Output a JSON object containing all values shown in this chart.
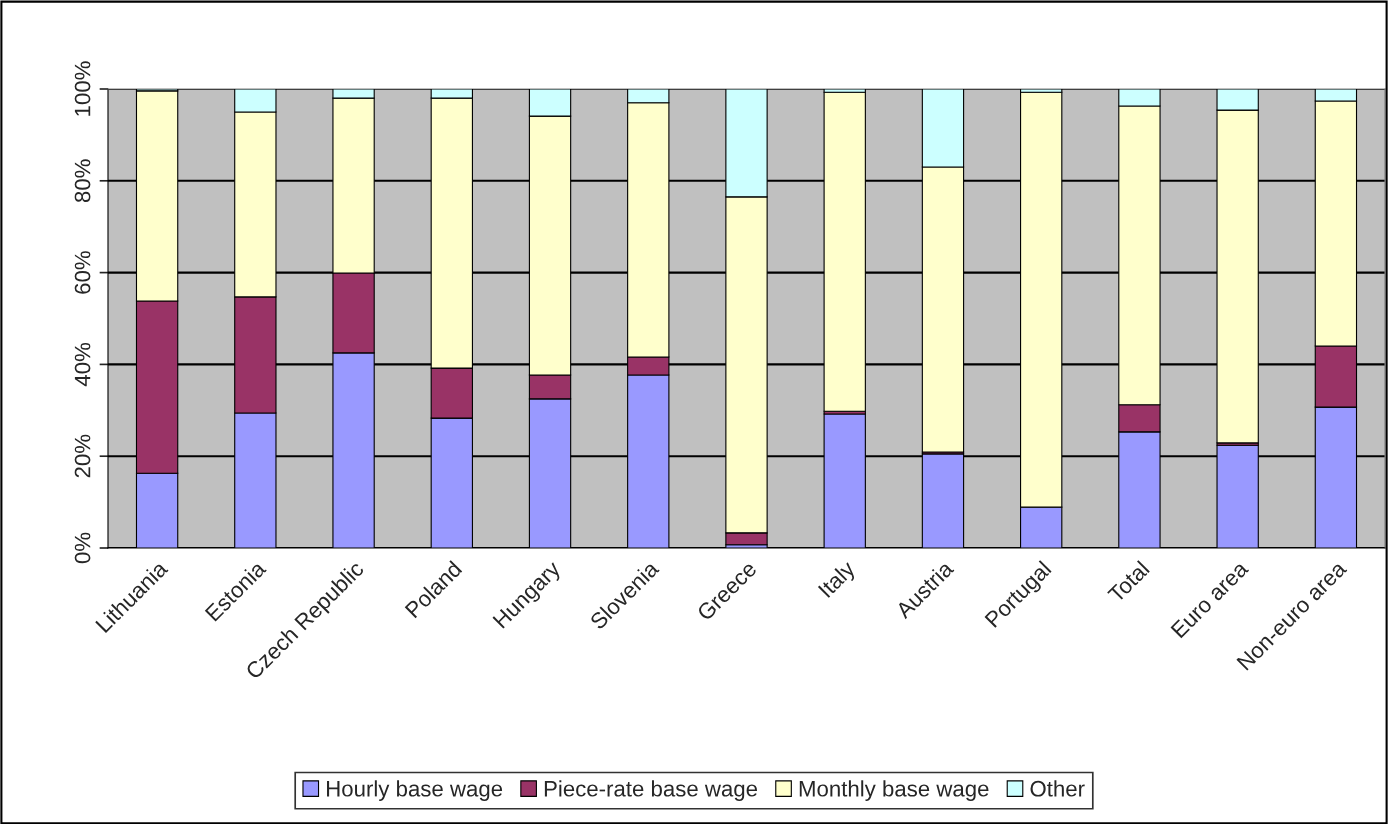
{
  "chart_data": {
    "type": "bar",
    "stacked": true,
    "categories": [
      "Lithuania",
      "Estonia",
      "Czech Republic",
      "Poland",
      "Hungary",
      "Slovenia",
      "Greece",
      "Italy",
      "Austria",
      "Portugal",
      "Total",
      "Euro area",
      "Non-euro area"
    ],
    "series": [
      {
        "name": "Hourly base wage",
        "color": "#9999ff",
        "values": [
          16.3,
          29.4,
          42.5,
          28.3,
          32.5,
          37.7,
          0.7,
          29.2,
          20.5,
          8.9,
          25.3,
          22.4,
          30.7
        ]
      },
      {
        "name": "Piece-rate base wage",
        "color": "#993366",
        "values": [
          37.5,
          25.3,
          17.4,
          10.9,
          5.2,
          3.9,
          2.6,
          0.6,
          0.4,
          null,
          5.9,
          0.5,
          13.3
        ]
      },
      {
        "name": "Monthly base wage",
        "color": "#ffffcc",
        "values": [
          45.8,
          40.3,
          38.1,
          58.8,
          56.4,
          55.4,
          73.2,
          69.5,
          62.1,
          90.4,
          65.1,
          72.5,
          53.4
        ]
      },
      {
        "name": "Other",
        "color": "#ccffff",
        "values": [
          0.4,
          5.0,
          2.0,
          2.0,
          5.9,
          3.0,
          23.5,
          0.7,
          17.0,
          0.7,
          3.7,
          4.6,
          2.6
        ]
      }
    ],
    "ylim": [
      0,
      100
    ],
    "yticks": [
      {
        "value": 0,
        "label": "0%"
      },
      {
        "value": 20,
        "label": "20%"
      },
      {
        "value": 40,
        "label": "40%"
      },
      {
        "value": 60,
        "label": "60%"
      },
      {
        "value": 80,
        "label": "80%"
      },
      {
        "value": 100,
        "label": "100%"
      }
    ],
    "grid": "y",
    "legend": "bottom"
  }
}
